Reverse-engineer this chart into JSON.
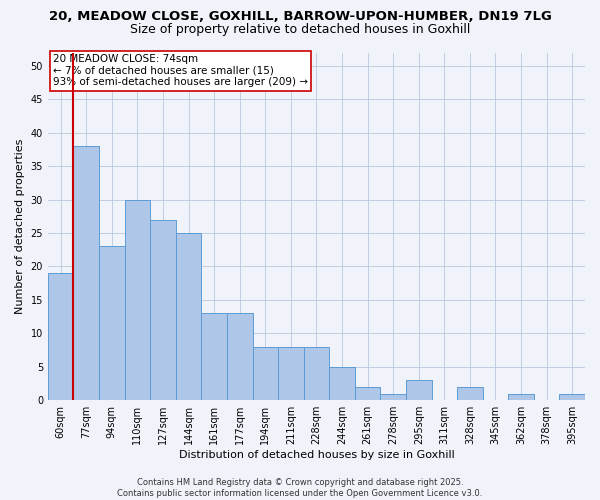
{
  "title_line1": "20, MEADOW CLOSE, GOXHILL, BARROW-UPON-HUMBER, DN19 7LG",
  "title_line2": "Size of property relative to detached houses in Goxhill",
  "xlabel": "Distribution of detached houses by size in Goxhill",
  "ylabel": "Number of detached properties",
  "categories": [
    "60sqm",
    "77sqm",
    "94sqm",
    "110sqm",
    "127sqm",
    "144sqm",
    "161sqm",
    "177sqm",
    "194sqm",
    "211sqm",
    "228sqm",
    "244sqm",
    "261sqm",
    "278sqm",
    "295sqm",
    "311sqm",
    "328sqm",
    "345sqm",
    "362sqm",
    "378sqm",
    "395sqm"
  ],
  "values": [
    19,
    38,
    23,
    30,
    27,
    25,
    13,
    13,
    8,
    8,
    8,
    5,
    2,
    1,
    3,
    0,
    2,
    0,
    1,
    0,
    1
  ],
  "bar_color": "#aec6e8",
  "bar_edgecolor": "#5b9bd5",
  "vline_color": "#cc0000",
  "annotation_text": "20 MEADOW CLOSE: 74sqm\n← 7% of detached houses are smaller (15)\n93% of semi-detached houses are larger (209) →",
  "annotation_box_color": "#ffffff",
  "annotation_box_edgecolor": "#cc0000",
  "ylim": [
    0,
    52
  ],
  "yticks": [
    0,
    5,
    10,
    15,
    20,
    25,
    30,
    35,
    40,
    45,
    50
  ],
  "background_color": "#f0f4fa",
  "grid_color": "#b8c8dc",
  "footer_text": "Contains HM Land Registry data © Crown copyright and database right 2025.\nContains public sector information licensed under the Open Government Licence v3.0.",
  "title_fontsize": 9.5,
  "subtitle_fontsize": 9,
  "axis_label_fontsize": 8,
  "tick_fontsize": 7,
  "annotation_fontsize": 7.5,
  "footer_fontsize": 6
}
